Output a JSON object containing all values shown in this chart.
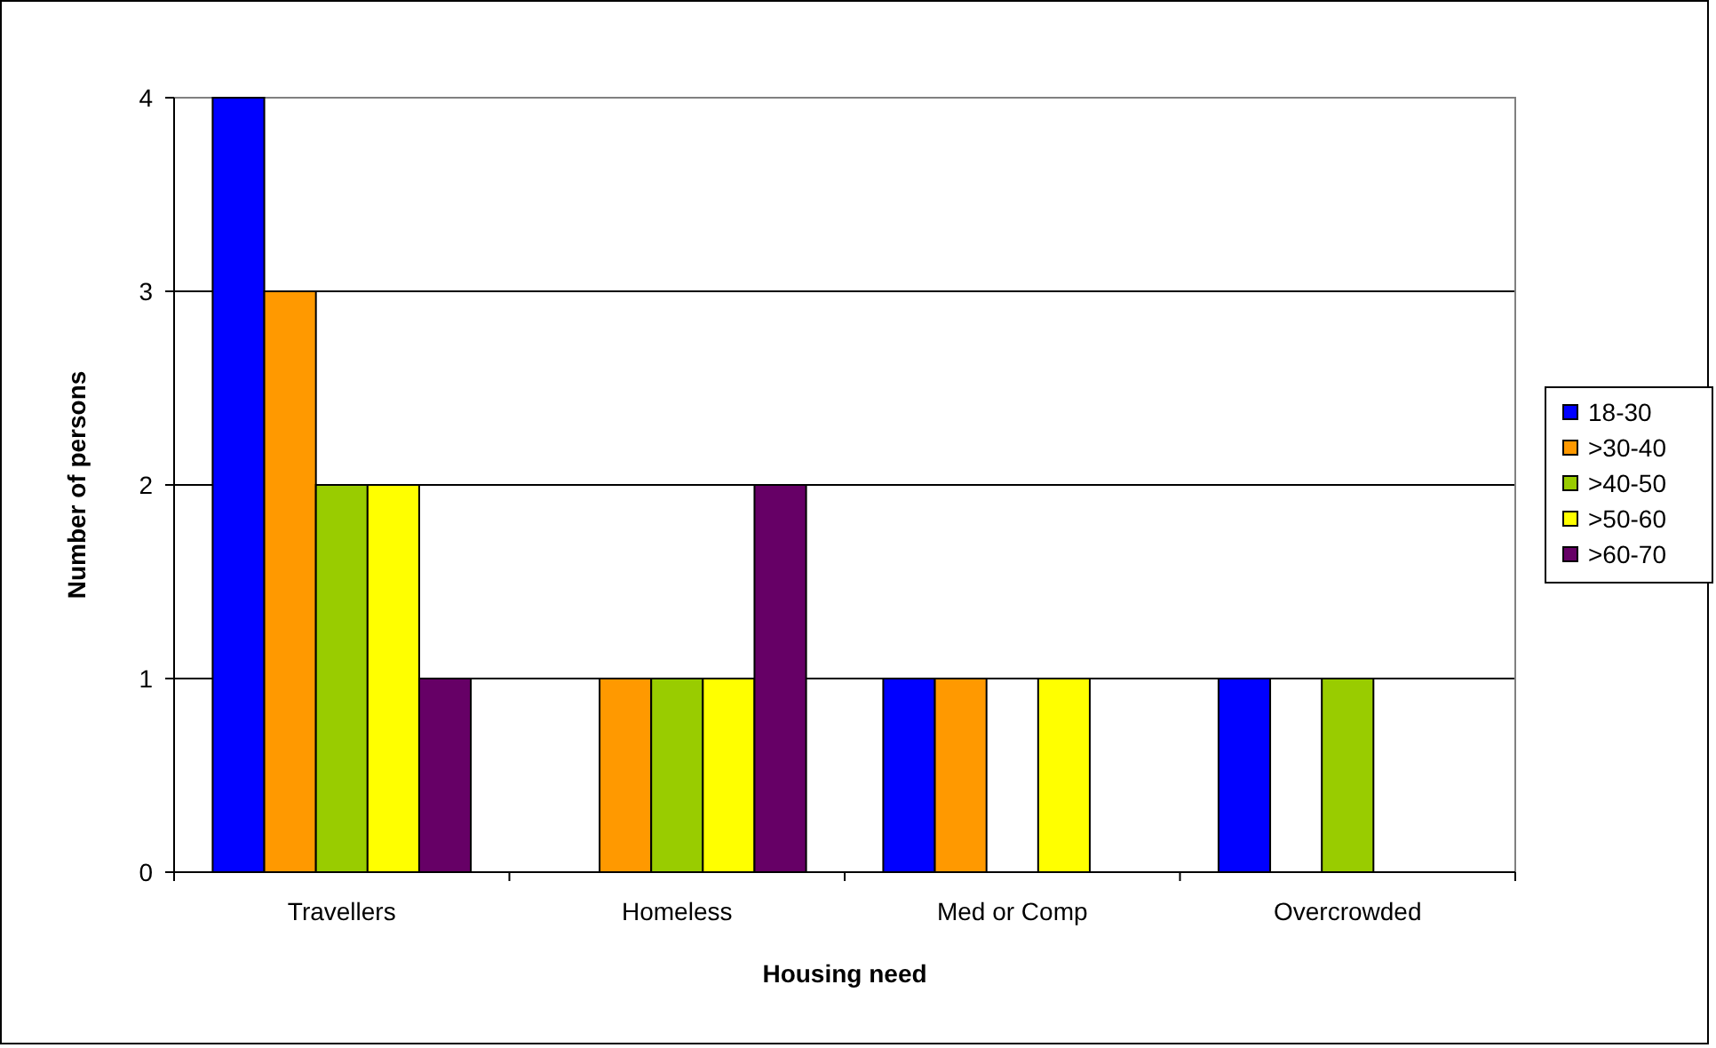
{
  "chart_data": {
    "type": "bar",
    "xlabel": "Housing need",
    "ylabel": "Number of persons",
    "categories": [
      "Travellers",
      "Homeless",
      "Med or Comp",
      "Overcrowded"
    ],
    "series": [
      {
        "name": "18-30",
        "color": "#0000ff",
        "values": [
          4,
          0,
          1,
          1
        ]
      },
      {
        "name": ">30-40",
        "color": "#ff9900",
        "values": [
          3,
          1,
          1,
          0
        ]
      },
      {
        "name": ">40-50",
        "color": "#99cc00",
        "values": [
          2,
          1,
          0,
          1
        ]
      },
      {
        "name": ">50-60",
        "color": "#ffff00",
        "values": [
          2,
          1,
          1,
          0
        ]
      },
      {
        "name": ">60-70",
        "color": "#660066",
        "values": [
          1,
          2,
          0,
          0
        ]
      }
    ],
    "ylim": [
      0,
      4
    ],
    "yticks": [
      0,
      1,
      2,
      3,
      4
    ],
    "grid": "y",
    "legend": "right"
  }
}
